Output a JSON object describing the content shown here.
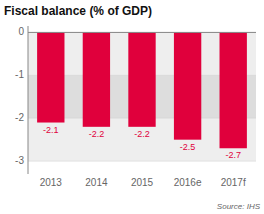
{
  "chart_data": {
    "type": "bar",
    "title": "Fiscal balance (% of GDP)",
    "categories": [
      "2013",
      "2014",
      "2015",
      "2016e",
      "2017f"
    ],
    "values": [
      -2.1,
      -2.2,
      -2.2,
      -2.5,
      -2.7
    ],
    "color": "#e0003c",
    "ylim": [
      -3.3,
      0.15
    ],
    "yticks": [
      0,
      -1,
      -2,
      -3
    ],
    "grid": true,
    "data_labels": true,
    "annotations": [
      "Source: IHS"
    ]
  }
}
